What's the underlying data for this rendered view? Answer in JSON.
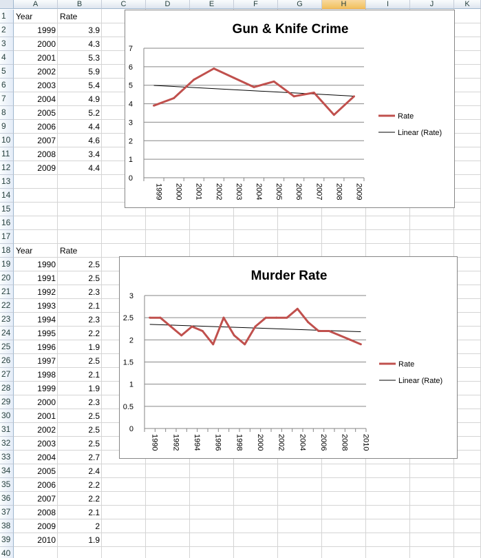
{
  "columns": [
    "A",
    "B",
    "C",
    "D",
    "E",
    "F",
    "G",
    "H",
    "I",
    "J",
    "K"
  ],
  "selected_column": "H",
  "rows": [
    "1",
    "2",
    "3",
    "4",
    "5",
    "6",
    "7",
    "8",
    "9",
    "10",
    "11",
    "12",
    "13",
    "14",
    "15",
    "16",
    "17",
    "18",
    "19",
    "20",
    "21",
    "22",
    "23",
    "24",
    "25",
    "26",
    "27",
    "28",
    "29",
    "30",
    "31",
    "32",
    "33",
    "34",
    "35",
    "36",
    "37",
    "38",
    "39",
    "40"
  ],
  "table1": {
    "header_year": "Year",
    "header_rate": "Rate",
    "years": [
      "1999",
      "2000",
      "2001",
      "2002",
      "2003",
      "2004",
      "2005",
      "2006",
      "2007",
      "2008",
      "2009"
    ],
    "rates": [
      "3.9",
      "4.3",
      "5.3",
      "5.9",
      "5.4",
      "4.9",
      "5.2",
      "4.4",
      "4.6",
      "3.4",
      "4.4"
    ]
  },
  "table2": {
    "header_year": "Year",
    "header_rate": "Rate",
    "years": [
      "1990",
      "1991",
      "1992",
      "1993",
      "1994",
      "1995",
      "1996",
      "1997",
      "1998",
      "1999",
      "2000",
      "2001",
      "2002",
      "2003",
      "2004",
      "2005",
      "2006",
      "2007",
      "2008",
      "2009",
      "2010"
    ],
    "rates": [
      "2.5",
      "2.5",
      "2.3",
      "2.1",
      "2.3",
      "2.2",
      "1.9",
      "2.5",
      "2.1",
      "1.9",
      "2.3",
      "2.5",
      "2.5",
      "2.5",
      "2.7",
      "2.4",
      "2.2",
      "2.2",
      "2.1",
      "2",
      "1.9"
    ]
  },
  "chart_data": [
    {
      "type": "line",
      "title": "Gun & Knife Crime",
      "categories": [
        "1999",
        "2000",
        "2001",
        "2002",
        "2003",
        "2004",
        "2005",
        "2006",
        "2007",
        "2008",
        "2009"
      ],
      "series": [
        {
          "name": "Rate",
          "values": [
            3.9,
            4.3,
            5.3,
            5.9,
            5.4,
            4.9,
            5.2,
            4.4,
            4.6,
            3.4,
            4.4
          ],
          "color": "#c0504d"
        }
      ],
      "trendline": {
        "name": "Linear (Rate)",
        "type": "linear",
        "color": "#000000"
      },
      "ylim": [
        0,
        7
      ],
      "yticks": [
        "0",
        "1",
        "2",
        "3",
        "4",
        "5",
        "6",
        "7"
      ],
      "grid": true,
      "legend": "right"
    },
    {
      "type": "line",
      "title": "Murder Rate",
      "categories": [
        "1990",
        "1991",
        "1992",
        "1993",
        "1994",
        "1995",
        "1996",
        "1997",
        "1998",
        "1999",
        "2000",
        "2001",
        "2002",
        "2003",
        "2004",
        "2005",
        "2006",
        "2007",
        "2008",
        "2009",
        "2010"
      ],
      "xtick_labels": [
        "1990",
        "1992",
        "1994",
        "1996",
        "1998",
        "2000",
        "2002",
        "2004",
        "2006",
        "2008",
        "2010"
      ],
      "series": [
        {
          "name": "Rate",
          "values": [
            2.5,
            2.5,
            2.3,
            2.1,
            2.3,
            2.2,
            1.9,
            2.5,
            2.1,
            1.9,
            2.3,
            2.5,
            2.5,
            2.5,
            2.7,
            2.4,
            2.2,
            2.2,
            2.1,
            2,
            1.9
          ],
          "color": "#c0504d"
        }
      ],
      "trendline": {
        "name": "Linear (Rate)",
        "type": "linear",
        "color": "#000000"
      },
      "ylim": [
        0,
        3
      ],
      "yticks": [
        "0",
        "0.5",
        "1",
        "1.5",
        "2",
        "2.5",
        "3"
      ],
      "grid": true,
      "legend": "right"
    }
  ]
}
